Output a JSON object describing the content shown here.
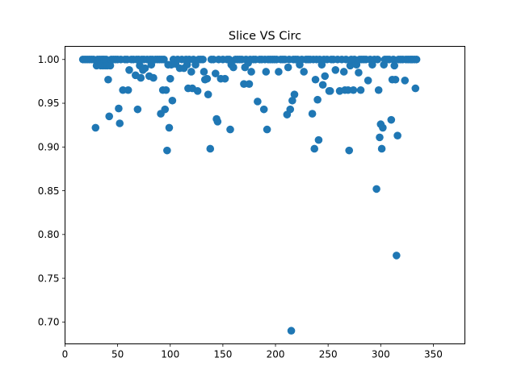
{
  "chart_data": {
    "type": "scatter",
    "title": "Slice VS Circ",
    "xlabel": "",
    "ylabel": "",
    "xlim": [
      0,
      380
    ],
    "ylim": [
      0.675,
      1.015
    ],
    "xticks": [
      0,
      50,
      100,
      150,
      200,
      250,
      300,
      350
    ],
    "yticks": [
      0.7,
      0.75,
      0.8,
      0.85,
      0.9,
      0.95,
      1.0
    ],
    "ytick_labels": [
      "0.70",
      "0.75",
      "0.80",
      "0.85",
      "0.90",
      "0.95",
      "1.00"
    ],
    "grid": false,
    "marker_color": "#1f77b4",
    "points": [
      [
        17,
        1.0
      ],
      [
        19,
        1.0
      ],
      [
        21,
        1.0
      ],
      [
        23,
        1.0
      ],
      [
        25,
        1.0
      ],
      [
        27,
        1.0
      ],
      [
        29,
        0.922
      ],
      [
        30,
        0.993
      ],
      [
        31,
        1.0
      ],
      [
        33,
        1.0
      ],
      [
        34,
        0.993
      ],
      [
        35,
        1.0
      ],
      [
        36,
        0.993
      ],
      [
        37,
        1.0
      ],
      [
        38,
        0.993
      ],
      [
        39,
        1.0
      ],
      [
        40,
        0.993
      ],
      [
        41,
        0.977
      ],
      [
        42,
        0.935
      ],
      [
        43,
        0.993
      ],
      [
        44,
        1.0
      ],
      [
        46,
        1.0
      ],
      [
        48,
        1.0
      ],
      [
        50,
        1.0
      ],
      [
        51,
        0.944
      ],
      [
        52,
        0.927
      ],
      [
        53,
        1.0
      ],
      [
        55,
        0.965
      ],
      [
        57,
        1.0
      ],
      [
        59,
        1.0
      ],
      [
        60,
        0.965
      ],
      [
        61,
        0.988
      ],
      [
        63,
        1.0
      ],
      [
        65,
        1.0
      ],
      [
        67,
        0.982
      ],
      [
        68,
        1.0
      ],
      [
        69,
        0.943
      ],
      [
        70,
        1.0
      ],
      [
        71,
        0.993
      ],
      [
        72,
        0.979
      ],
      [
        73,
        1.0
      ],
      [
        74,
        0.988
      ],
      [
        75,
        1.0
      ],
      [
        76,
        0.99
      ],
      [
        78,
        1.0
      ],
      [
        80,
        0.981
      ],
      [
        81,
        1.0
      ],
      [
        82,
        0.994
      ],
      [
        83,
        1.0
      ],
      [
        84,
        0.979
      ],
      [
        86,
        1.0
      ],
      [
        88,
        1.0
      ],
      [
        90,
        1.0
      ],
      [
        91,
        0.938
      ],
      [
        92,
        1.0
      ],
      [
        93,
        0.965
      ],
      [
        94,
        1.0
      ],
      [
        95,
        0.943
      ],
      [
        96,
        0.965
      ],
      [
        97,
        0.896
      ],
      [
        98,
        0.994
      ],
      [
        99,
        0.922
      ],
      [
        100,
        0.978
      ],
      [
        101,
        0.994
      ],
      [
        102,
        0.953
      ],
      [
        103,
        1.0
      ],
      [
        105,
        0.995
      ],
      [
        107,
        1.0
      ],
      [
        109,
        0.99
      ],
      [
        111,
        1.0
      ],
      [
        113,
        0.99
      ],
      [
        115,
        1.0
      ],
      [
        116,
        0.994
      ],
      [
        117,
        0.967
      ],
      [
        118,
        1.0
      ],
      [
        120,
        0.986
      ],
      [
        121,
        0.967
      ],
      [
        122,
        1.0
      ],
      [
        124,
        0.994
      ],
      [
        126,
        0.964
      ],
      [
        127,
        1.0
      ],
      [
        129,
        1.0
      ],
      [
        131,
        1.0
      ],
      [
        132,
        0.986
      ],
      [
        133,
        0.977
      ],
      [
        135,
        0.978
      ],
      [
        136,
        0.96
      ],
      [
        138,
        0.898
      ],
      [
        139,
        1.0
      ],
      [
        141,
        1.0
      ],
      [
        143,
        0.984
      ],
      [
        144,
        0.932
      ],
      [
        145,
        0.929
      ],
      [
        146,
        1.0
      ],
      [
        148,
        0.978
      ],
      [
        150,
        1.0
      ],
      [
        152,
        0.978
      ],
      [
        154,
        1.0
      ],
      [
        156,
        1.0
      ],
      [
        157,
        0.92
      ],
      [
        158,
        0.994
      ],
      [
        160,
        0.991
      ],
      [
        162,
        1.0
      ],
      [
        164,
        1.0
      ],
      [
        166,
        1.0
      ],
      [
        168,
        1.0
      ],
      [
        170,
        0.972
      ],
      [
        171,
        0.991
      ],
      [
        172,
        1.0
      ],
      [
        174,
        0.996
      ],
      [
        175,
        0.972
      ],
      [
        176,
        1.0
      ],
      [
        177,
        0.986
      ],
      [
        179,
        1.0
      ],
      [
        181,
        1.0
      ],
      [
        183,
        0.952
      ],
      [
        185,
        1.0
      ],
      [
        187,
        1.0
      ],
      [
        189,
        0.943
      ],
      [
        190,
        1.0
      ],
      [
        191,
        0.986
      ],
      [
        192,
        0.92
      ],
      [
        193,
        1.0
      ],
      [
        195,
        1.0
      ],
      [
        197,
        1.0
      ],
      [
        199,
        1.0
      ],
      [
        201,
        1.0
      ],
      [
        203,
        0.986
      ],
      [
        205,
        1.0
      ],
      [
        207,
        1.0
      ],
      [
        209,
        1.0
      ],
      [
        211,
        0.937
      ],
      [
        212,
        0.991
      ],
      [
        213,
        1.0
      ],
      [
        214,
        0.943
      ],
      [
        215,
        0.69
      ],
      [
        216,
        0.953
      ],
      [
        217,
        1.0
      ],
      [
        218,
        0.96
      ],
      [
        219,
        1.0
      ],
      [
        221,
        1.0
      ],
      [
        223,
        0.994
      ],
      [
        225,
        1.0
      ],
      [
        227,
        0.986
      ],
      [
        229,
        1.0
      ],
      [
        231,
        1.0
      ],
      [
        233,
        1.0
      ],
      [
        235,
        0.938
      ],
      [
        236,
        1.0
      ],
      [
        237,
        0.898
      ],
      [
        238,
        0.977
      ],
      [
        239,
        1.0
      ],
      [
        240,
        0.954
      ],
      [
        241,
        0.908
      ],
      [
        242,
        1.0
      ],
      [
        244,
        0.994
      ],
      [
        245,
        0.971
      ],
      [
        246,
        1.0
      ],
      [
        247,
        0.981
      ],
      [
        249,
        1.0
      ],
      [
        251,
        0.964
      ],
      [
        252,
        0.964
      ],
      [
        253,
        1.0
      ],
      [
        255,
        1.0
      ],
      [
        257,
        0.988
      ],
      [
        259,
        1.0
      ],
      [
        261,
        0.964
      ],
      [
        263,
        1.0
      ],
      [
        265,
        0.986
      ],
      [
        266,
        0.965
      ],
      [
        267,
        1.0
      ],
      [
        269,
        0.965
      ],
      [
        270,
        0.896
      ],
      [
        271,
        0.993
      ],
      [
        272,
        1.0
      ],
      [
        274,
        0.965
      ],
      [
        275,
        1.0
      ],
      [
        277,
        0.994
      ],
      [
        279,
        0.985
      ],
      [
        280,
        1.0
      ],
      [
        281,
        0.965
      ],
      [
        282,
        1.0
      ],
      [
        284,
        1.0
      ],
      [
        286,
        1.0
      ],
      [
        288,
        0.976
      ],
      [
        290,
        1.0
      ],
      [
        292,
        0.994
      ],
      [
        294,
        1.0
      ],
      [
        296,
        0.852
      ],
      [
        297,
        1.0
      ],
      [
        298,
        0.965
      ],
      [
        299,
        0.911
      ],
      [
        300,
        0.926
      ],
      [
        301,
        0.898
      ],
      [
        302,
        0.922
      ],
      [
        303,
        0.994
      ],
      [
        304,
        1.0
      ],
      [
        306,
        1.0
      ],
      [
        308,
        1.0
      ],
      [
        310,
        0.931
      ],
      [
        311,
        0.977
      ],
      [
        312,
        1.0
      ],
      [
        313,
        0.993
      ],
      [
        314,
        0.977
      ],
      [
        315,
        0.776
      ],
      [
        316,
        0.913
      ],
      [
        317,
        1.0
      ],
      [
        319,
        1.0
      ],
      [
        321,
        1.0
      ],
      [
        323,
        0.976
      ],
      [
        324,
        1.0
      ],
      [
        326,
        1.0
      ],
      [
        328,
        1.0
      ],
      [
        330,
        1.0
      ],
      [
        332,
        1.0
      ],
      [
        333,
        0.967
      ],
      [
        334,
        1.0
      ]
    ]
  }
}
